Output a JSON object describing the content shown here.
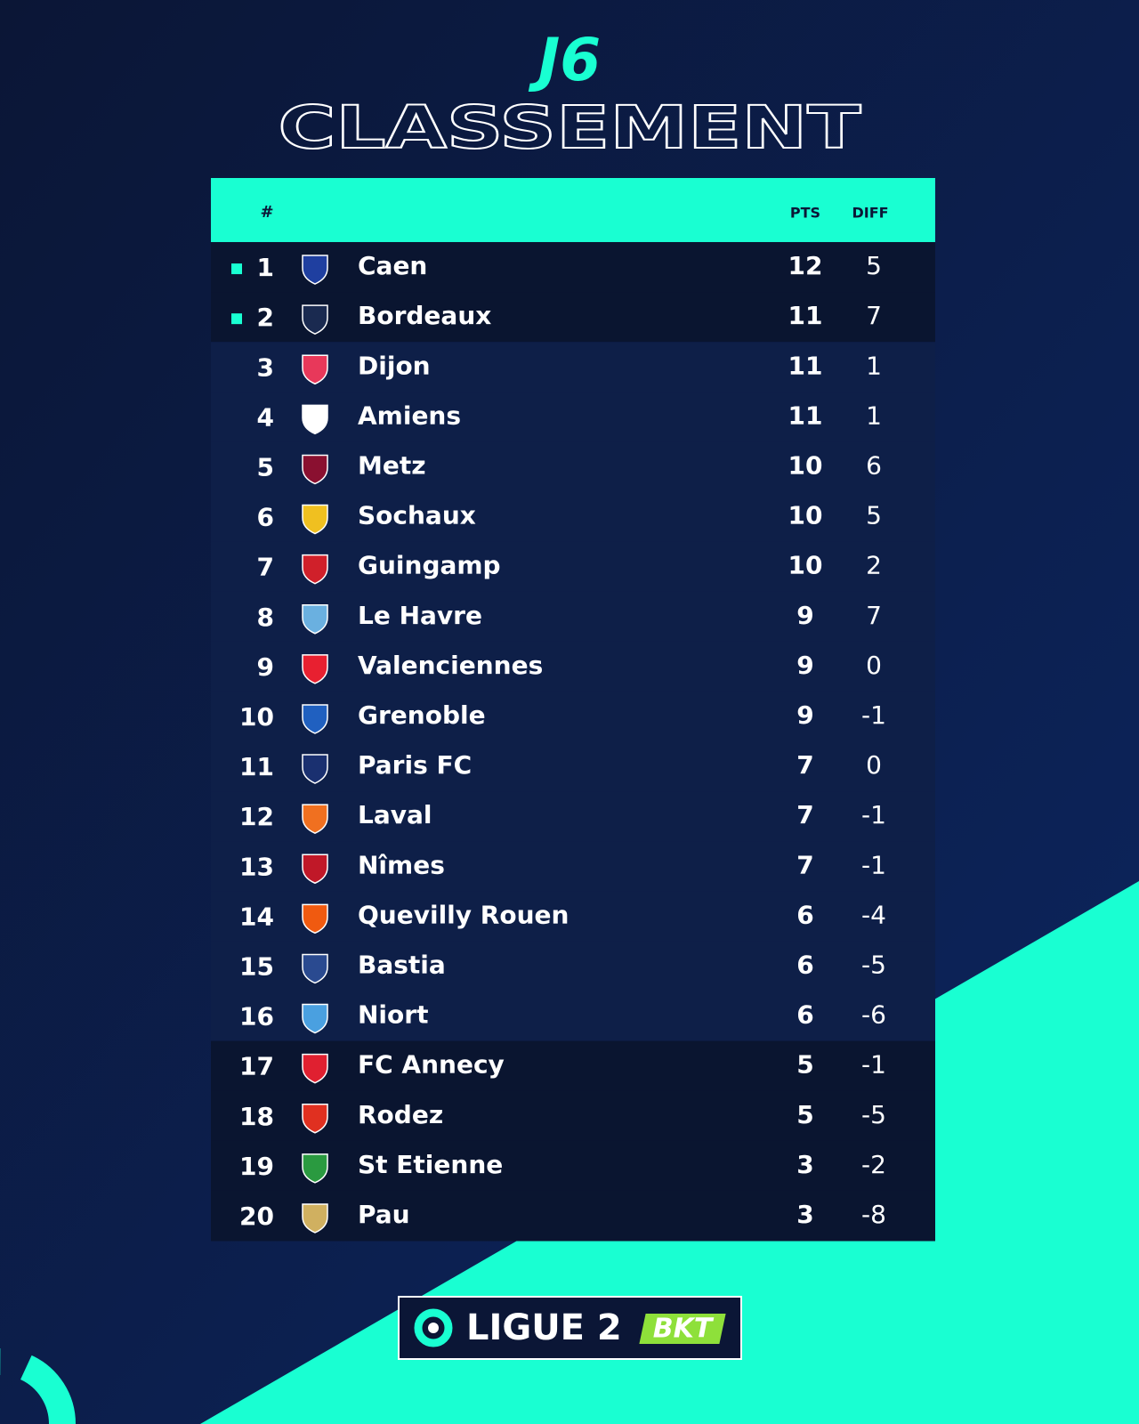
{
  "header": {
    "matchday": "J6",
    "title": "CLASSEMENT"
  },
  "table": {
    "columns": [
      "#",
      "PTS",
      "DIFF"
    ],
    "rows": [
      [
        1,
        "Caen",
        12,
        5
      ],
      [
        2,
        "Bordeaux",
        11,
        7
      ],
      [
        3,
        "Dijon",
        11,
        1
      ],
      [
        4,
        "Amiens",
        11,
        1
      ],
      [
        5,
        "Metz",
        10,
        6
      ],
      [
        6,
        "Sochaux",
        10,
        5
      ],
      [
        7,
        "Guingamp",
        10,
        2
      ],
      [
        8,
        "Le Havre",
        9,
        7
      ],
      [
        9,
        "Valenciennes",
        9,
        0
      ],
      [
        10,
        "Grenoble",
        9,
        -1
      ],
      [
        11,
        "Paris FC",
        7,
        0
      ],
      [
        12,
        "Laval",
        7,
        -1
      ],
      [
        13,
        "Nîmes",
        7,
        -1
      ],
      [
        14,
        "Quevilly Rouen",
        6,
        -4
      ],
      [
        15,
        "Bastia",
        6,
        -5
      ],
      [
        16,
        "Niort",
        6,
        -6
      ],
      [
        17,
        "FC Annecy",
        5,
        -1
      ],
      [
        18,
        "Rodez",
        5,
        -5
      ],
      [
        19,
        "St Etienne",
        3,
        -2
      ],
      [
        20,
        "Pau",
        3,
        -8
      ]
    ]
  },
  "footer": {
    "league": "LIGUE 2",
    "sponsor": "BKT"
  }
}
